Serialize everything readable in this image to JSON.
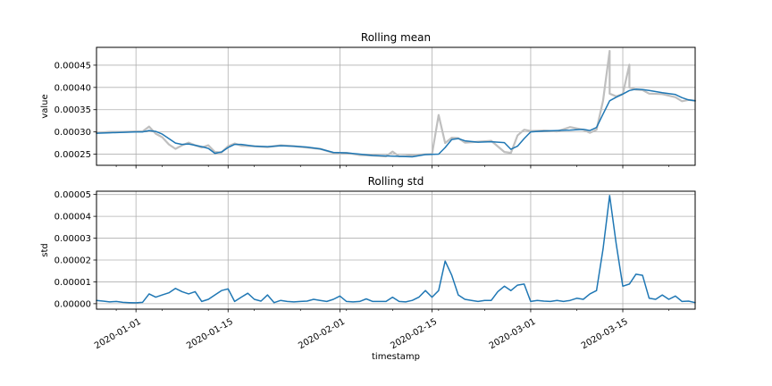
{
  "chart_data": [
    {
      "type": "line",
      "title": "Rolling mean",
      "xlabel": "",
      "ylabel": "value",
      "xlim": [
        "2019-12-26",
        "2020-03-26"
      ],
      "ylim": [
        0.000225,
        0.00049
      ],
      "yticks": [
        0.00025,
        0.0003,
        0.00035,
        0.0004,
        0.00045
      ],
      "ytick_labels": [
        "0.00025",
        "0.00030",
        "0.00035",
        "0.00040",
        "0.00045"
      ],
      "grid": true,
      "colors": {
        "raw": "#bfbfbf",
        "rolling": "#1f77b4"
      },
      "series": [
        {
          "role": "raw",
          "x": [
            "2019-12-26",
            "2019-12-28",
            "2019-12-30",
            "2020-01-01",
            "2020-01-02",
            "2020-01-03",
            "2020-01-04",
            "2020-01-05",
            "2020-01-06",
            "2020-01-07",
            "2020-01-08",
            "2020-01-09",
            "2020-01-10",
            "2020-01-11",
            "2020-01-12",
            "2020-01-13",
            "2020-01-14",
            "2020-01-15",
            "2020-01-16",
            "2020-01-17",
            "2020-01-19",
            "2020-01-21",
            "2020-01-23",
            "2020-01-25",
            "2020-01-27",
            "2020-01-29",
            "2020-01-31",
            "2020-02-02",
            "2020-02-04",
            "2020-02-06",
            "2020-02-08",
            "2020-02-09",
            "2020-02-10",
            "2020-02-11",
            "2020-02-13",
            "2020-02-15",
            "2020-02-16",
            "2020-02-17",
            "2020-02-18",
            "2020-02-19",
            "2020-02-20",
            "2020-02-22",
            "2020-02-24",
            "2020-02-26",
            "2020-02-27",
            "2020-02-28",
            "2020-02-29",
            "2020-03-01",
            "2020-03-03",
            "2020-03-05",
            "2020-03-07",
            "2020-03-09",
            "2020-03-10",
            "2020-03-11",
            "2020-03-12",
            "2020-03-13",
            "2020-03-13",
            "2020-03-14",
            "2020-03-15",
            "2020-03-16",
            "2020-03-16",
            "2020-03-17",
            "2020-03-18",
            "2020-03-19",
            "2020-03-21",
            "2020-03-23",
            "2020-03-24",
            "2020-03-25",
            "2020-03-26"
          ],
          "values": [
            0.000298,
            0.0003,
            0.0003,
            0.000301,
            0.000301,
            0.000312,
            0.000296,
            0.000288,
            0.000272,
            0.000262,
            0.00027,
            0.000276,
            0.00027,
            0.000265,
            0.00027,
            0.000255,
            0.000254,
            0.000268,
            0.000274,
            0.000269,
            0.000268,
            0.000266,
            0.00027,
            0.000268,
            0.000265,
            0.000262,
            0.000253,
            0.000253,
            0.000248,
            0.000247,
            0.000245,
            0.000256,
            0.000245,
            0.000246,
            0.000249,
            0.00025,
            0.000338,
            0.000275,
            0.000287,
            0.000286,
            0.000276,
            0.000278,
            0.00028,
            0.000255,
            0.000253,
            0.000292,
            0.000305,
            0.000302,
            0.000303,
            0.000301,
            0.000311,
            0.000305,
            0.000298,
            0.000305,
            0.00037,
            0.000482,
            0.000386,
            0.00038,
            0.000385,
            0.000451,
            0.0004,
            0.000395,
            0.000394,
            0.000386,
            0.000385,
            0.000378,
            0.000369,
            0.000372,
            0.00037
          ]
        },
        {
          "role": "rolling",
          "x": [
            "2019-12-26",
            "2019-12-28",
            "2019-12-30",
            "2020-01-01",
            "2020-01-02",
            "2020-01-03",
            "2020-01-04",
            "2020-01-05",
            "2020-01-06",
            "2020-01-07",
            "2020-01-08",
            "2020-01-09",
            "2020-01-10",
            "2020-01-11",
            "2020-01-12",
            "2020-01-13",
            "2020-01-14",
            "2020-01-15",
            "2020-01-16",
            "2020-01-17",
            "2020-01-19",
            "2020-01-21",
            "2020-01-23",
            "2020-01-25",
            "2020-01-27",
            "2020-01-29",
            "2020-01-31",
            "2020-02-02",
            "2020-02-04",
            "2020-02-06",
            "2020-02-08",
            "2020-02-10",
            "2020-02-12",
            "2020-02-14",
            "2020-02-16",
            "2020-02-17",
            "2020-02-18",
            "2020-02-19",
            "2020-02-20",
            "2020-02-22",
            "2020-02-24",
            "2020-02-26",
            "2020-02-27",
            "2020-02-28",
            "2020-02-29",
            "2020-03-01",
            "2020-03-03",
            "2020-03-05",
            "2020-03-07",
            "2020-03-09",
            "2020-03-10",
            "2020-03-11",
            "2020-03-12",
            "2020-03-13",
            "2020-03-14",
            "2020-03-15",
            "2020-03-16",
            "2020-03-17",
            "2020-03-18",
            "2020-03-19",
            "2020-03-21",
            "2020-03-23",
            "2020-03-24",
            "2020-03-25",
            "2020-03-26"
          ],
          "values": [
            0.000297,
            0.000298,
            0.000299,
            0.0003,
            0.0003,
            0.000303,
            0.000301,
            0.000295,
            0.000285,
            0.000275,
            0.000272,
            0.000273,
            0.00027,
            0.000267,
            0.000263,
            0.000252,
            0.000255,
            0.000265,
            0.000272,
            0.000272,
            0.000268,
            0.000267,
            0.000269,
            0.000268,
            0.000266,
            0.000262,
            0.000254,
            0.000253,
            0.00025,
            0.000247,
            0.000246,
            0.000245,
            0.000244,
            0.000249,
            0.00025,
            0.000265,
            0.000283,
            0.000285,
            0.00028,
            0.000277,
            0.000278,
            0.000276,
            0.000261,
            0.000268,
            0.000285,
            0.0003,
            0.000302,
            0.000303,
            0.000304,
            0.000306,
            0.000303,
            0.00031,
            0.00034,
            0.00037,
            0.000378,
            0.000385,
            0.000393,
            0.000396,
            0.000395,
            0.000393,
            0.000388,
            0.000384,
            0.000377,
            0.000372,
            0.00037
          ]
        }
      ]
    },
    {
      "type": "line",
      "title": "Rolling std",
      "xlabel": "timestamp",
      "ylabel": "std",
      "xlim": [
        "2019-12-26",
        "2020-03-26"
      ],
      "ylim": [
        -2.5e-06,
        5.15e-05
      ],
      "yticks": [
        0,
        1e-05,
        2e-05,
        3e-05,
        4e-05,
        5e-05
      ],
      "ytick_labels": [
        "0.00000",
        "0.00001",
        "0.00002",
        "0.00003",
        "0.00004",
        "0.00005"
      ],
      "xticks": [
        "2020-01-01",
        "2020-01-15",
        "2020-02-01",
        "2020-02-15",
        "2020-03-01",
        "2020-03-15"
      ],
      "xtick_labels": [
        "2020-01-01",
        "2020-01-15",
        "2020-02-01",
        "2020-02-15",
        "2020-03-01",
        "2020-03-15"
      ],
      "grid": true,
      "colors": {
        "rolling": "#1f77b4"
      },
      "series": [
        {
          "role": "rolling",
          "x": [
            "2019-12-26",
            "2019-12-27",
            "2019-12-28",
            "2019-12-29",
            "2019-12-30",
            "2019-12-31",
            "2020-01-01",
            "2020-01-02",
            "2020-01-03",
            "2020-01-04",
            "2020-01-05",
            "2020-01-06",
            "2020-01-07",
            "2020-01-08",
            "2020-01-09",
            "2020-01-10",
            "2020-01-11",
            "2020-01-12",
            "2020-01-13",
            "2020-01-14",
            "2020-01-15",
            "2020-01-16",
            "2020-01-17",
            "2020-01-18",
            "2020-01-19",
            "2020-01-20",
            "2020-01-21",
            "2020-01-22",
            "2020-01-23",
            "2020-01-24",
            "2020-01-25",
            "2020-01-26",
            "2020-01-27",
            "2020-01-28",
            "2020-01-29",
            "2020-01-30",
            "2020-01-31",
            "2020-02-01",
            "2020-02-02",
            "2020-02-03",
            "2020-02-04",
            "2020-02-05",
            "2020-02-06",
            "2020-02-07",
            "2020-02-08",
            "2020-02-09",
            "2020-02-10",
            "2020-02-11",
            "2020-02-12",
            "2020-02-13",
            "2020-02-14",
            "2020-02-15",
            "2020-02-16",
            "2020-02-17",
            "2020-02-18",
            "2020-02-19",
            "2020-02-20",
            "2020-02-21",
            "2020-02-22",
            "2020-02-23",
            "2020-02-24",
            "2020-02-25",
            "2020-02-26",
            "2020-02-27",
            "2020-02-28",
            "2020-02-29",
            "2020-03-01",
            "2020-03-02",
            "2020-03-03",
            "2020-03-04",
            "2020-03-05",
            "2020-03-06",
            "2020-03-07",
            "2020-03-08",
            "2020-03-09",
            "2020-03-10",
            "2020-03-11",
            "2020-03-12",
            "2020-03-13",
            "2020-03-14",
            "2020-03-15",
            "2020-03-16",
            "2020-03-17",
            "2020-03-18",
            "2020-03-19",
            "2020-03-20",
            "2020-03-21",
            "2020-03-22",
            "2020-03-23",
            "2020-03-24",
            "2020-03-25",
            "2020-03-26"
          ],
          "values": [
            1.5e-06,
            1.2e-06,
            8e-07,
            1e-06,
            6e-07,
            5e-07,
            4e-07,
            6e-07,
            4.5e-06,
            3e-06,
            4e-06,
            5e-06,
            7e-06,
            5.5e-06,
            4.5e-06,
            5.5e-06,
            1e-06,
            2e-06,
            4e-06,
            6e-06,
            6.8e-06,
            1e-06,
            3e-06,
            4.8e-06,
            2e-06,
            1.2e-06,
            4e-06,
            5e-07,
            1.5e-06,
            1e-06,
            8e-07,
            1e-06,
            1.2e-06,
            2e-06,
            1.5e-06,
            1e-06,
            2e-06,
            3.5e-06,
            1e-06,
            8e-07,
            1e-06,
            2.2e-06,
            1e-06,
            1e-06,
            1e-06,
            3e-06,
            1e-06,
            8e-07,
            1.5e-06,
            3e-06,
            6e-06,
            3e-06,
            6e-06,
            1.95e-05,
            1.3e-05,
            4e-06,
            2e-06,
            1.5e-06,
            1e-06,
            1.5e-06,
            1.5e-06,
            5.5e-06,
            8e-06,
            6e-06,
            8.5e-06,
            9e-06,
            1e-06,
            1.5e-06,
            1.2e-06,
            1e-06,
            1.5e-06,
            1e-06,
            1.5e-06,
            2.5e-06,
            2e-06,
            4.5e-06,
            6e-06,
            2.5e-05,
            4.95e-05,
            2.75e-05,
            8e-06,
            9e-06,
            1.35e-05,
            1.3e-05,
            2.5e-06,
            2e-06,
            4e-06,
            2e-06,
            3.5e-06,
            1e-06,
            1.2e-06,
            5e-07
          ]
        }
      ]
    }
  ]
}
